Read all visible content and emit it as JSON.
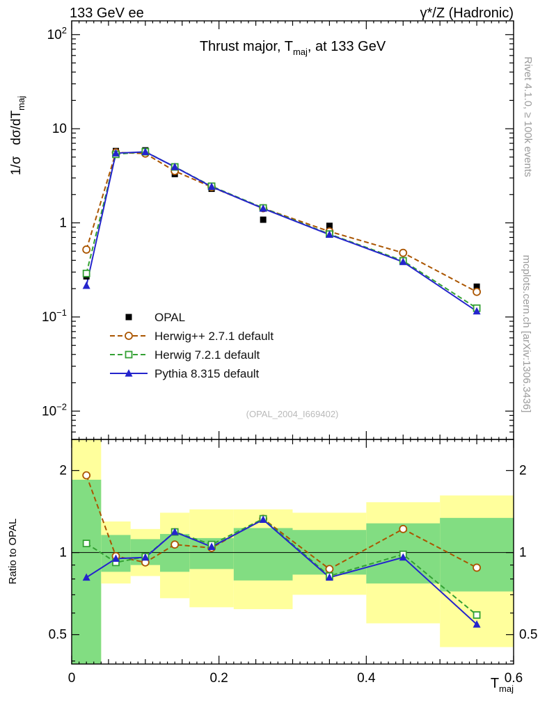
{
  "header": {
    "left": "133 GeV ee",
    "right": "γ*/Z (Hadronic)"
  },
  "title": {
    "pre": "Thrust major, T",
    "sub": "maj",
    "post": ", at 133 GeV"
  },
  "axes": {
    "ylabel_p1": "1/σ",
    "ylabel_p2": "dσ/dT",
    "ylabel_sub": "maj",
    "ratio_ylabel": "Ratio to OPAL",
    "xlabel_pre": "T",
    "xlabel_sub": "maj"
  },
  "side_notes": {
    "rivet": "Rivet 4.1.0, ≥ 100k events",
    "mcplots": "mcplots.cern.ch [arXiv:1306.3436]"
  },
  "watermark": "(OPAL_2004_I669402)",
  "chart_data": {
    "type": "line",
    "title": "Thrust major, T_maj, at 133 GeV",
    "xlabel": "T_maj",
    "ylabel": "1/σ dσ/dT_maj",
    "ratio_ylabel": "Ratio to OPAL",
    "xlim": [
      0,
      0.6
    ],
    "main_ylim": [
      0.005,
      140
    ],
    "ratio_ylim": [
      0.39,
      2.6
    ],
    "x": [
      0.02,
      0.06,
      0.1,
      0.14,
      0.19,
      0.26,
      0.35,
      0.45,
      0.55
    ],
    "x_ticks": [
      {
        "v": 0,
        "label": "0"
      },
      {
        "v": 0.2,
        "label": "0.2"
      },
      {
        "v": 0.4,
        "label": "0.4"
      },
      {
        "v": 0.6,
        "label": "0.6"
      }
    ],
    "main_y_tick_exponents": [
      2,
      1,
      0,
      -1,
      -2
    ],
    "ratio_ticks": [
      {
        "v": 2,
        "label": "2"
      },
      {
        "v": 1,
        "label": "1"
      },
      {
        "v": 0.5,
        "label": "0.5"
      }
    ],
    "series": [
      {
        "name": "OPAL",
        "color": "#000000",
        "marker": "square-filled",
        "line": "none",
        "values": [
          0.27,
          5.8,
          5.9,
          3.3,
          2.3,
          1.08,
          0.93,
          0.4,
          0.21
        ]
      },
      {
        "name": "Herwig++ 2.7.1 default",
        "color": "#aa5500",
        "marker": "circle-open",
        "line": "dashed",
        "values": [
          0.52,
          5.6,
          5.45,
          3.55,
          2.4,
          1.43,
          0.81,
          0.48,
          0.185
        ],
        "ratio": [
          1.92,
          0.97,
          0.92,
          1.07,
          1.04,
          1.33,
          0.87,
          1.22,
          0.88
        ]
      },
      {
        "name": "Herwig 7.2.1 default",
        "color": "#33a033",
        "marker": "square-open",
        "line": "dashed",
        "values": [
          0.29,
          5.35,
          5.7,
          3.93,
          2.45,
          1.44,
          0.76,
          0.395,
          0.124
        ],
        "ratio": [
          1.08,
          0.92,
          0.965,
          1.19,
          1.07,
          1.33,
          0.82,
          0.985,
          0.59
        ]
      },
      {
        "name": "Pythia 8.315 default",
        "color": "#2424cc",
        "marker": "triangle-filled",
        "line": "solid",
        "values": [
          0.215,
          5.5,
          5.68,
          3.93,
          2.42,
          1.42,
          0.75,
          0.385,
          0.115
        ],
        "ratio": [
          0.81,
          0.95,
          0.96,
          1.19,
          1.05,
          1.32,
          0.81,
          0.96,
          0.545
        ]
      }
    ],
    "bands": {
      "yellow_color": "#ffff9c",
      "green_color": "#82dd82",
      "edges": [
        0,
        0.04,
        0.08,
        0.12,
        0.16,
        0.22,
        0.3,
        0.4,
        0.5,
        0.6
      ],
      "yellow": [
        [
          0.39,
          2.6
        ],
        [
          0.77,
          1.3
        ],
        [
          0.82,
          1.22
        ],
        [
          0.68,
          1.4
        ],
        [
          0.63,
          1.44
        ],
        [
          0.62,
          1.44
        ],
        [
          0.7,
          1.4
        ],
        [
          0.55,
          1.53
        ],
        [
          0.45,
          1.62
        ]
      ],
      "green": [
        [
          0.39,
          1.85
        ],
        [
          0.85,
          1.16
        ],
        [
          0.9,
          1.12
        ],
        [
          0.85,
          1.17
        ],
        [
          0.87,
          1.13
        ],
        [
          0.79,
          1.23
        ],
        [
          0.83,
          1.21
        ],
        [
          0.77,
          1.28
        ],
        [
          0.72,
          1.34
        ]
      ]
    }
  }
}
